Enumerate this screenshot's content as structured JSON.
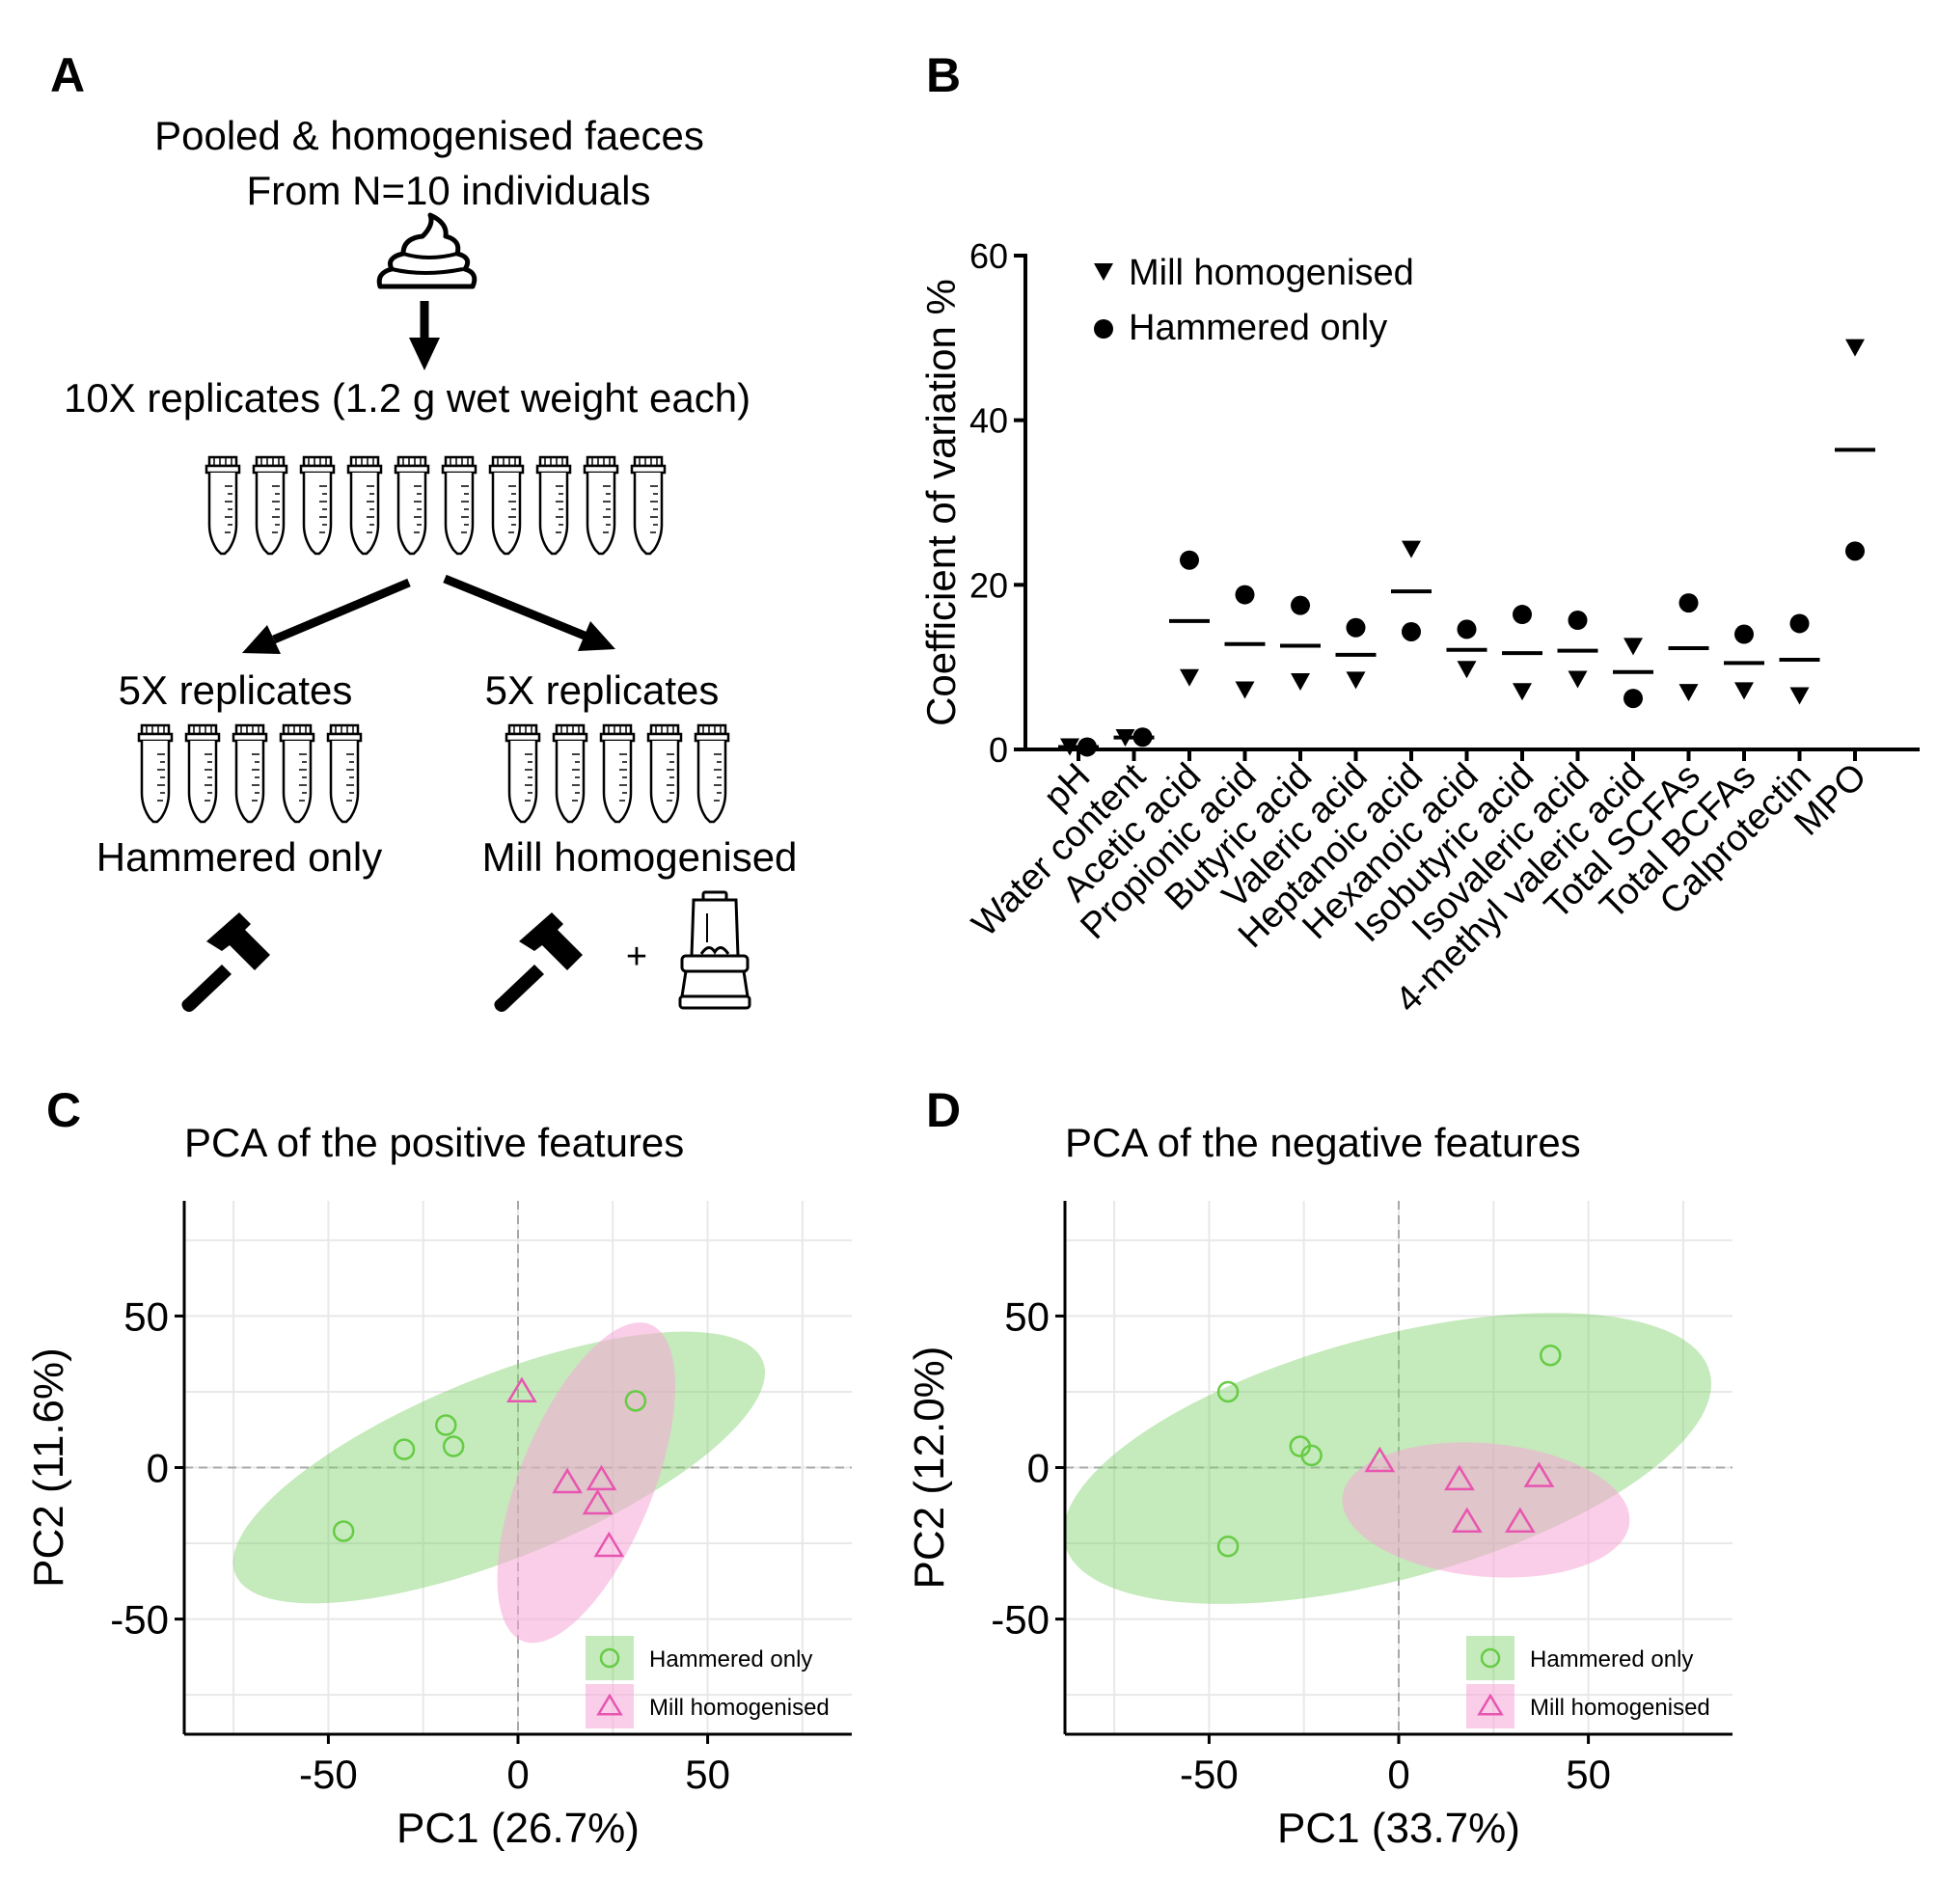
{
  "panels": {
    "A": {
      "letter": "A",
      "title_line1": "Pooled & homogenised faeces",
      "title_line2": "From N=10 individuals",
      "replicates_label": "10X replicates (1.2 g wet weight each)",
      "left_split_label": "5X replicates",
      "right_split_label": "5X replicates",
      "left_method": "Hammered only",
      "right_method": "Mill homogenised",
      "plus_sign": "+",
      "icons": [
        "faeces-icon",
        "arrow-down-icon",
        "tube-icon",
        "arrow-diagonal-icon",
        "hammer-icon",
        "mill-icon"
      ]
    },
    "B": {
      "letter": "B"
    },
    "C": {
      "letter": "C"
    },
    "D": {
      "letter": "D"
    }
  },
  "colors": {
    "hammered": "#66cc44",
    "hammered_fill": "#7fd16b",
    "mill": "#e855b0",
    "mill_fill": "#f6a6d6",
    "grid": "#e8e8e8",
    "axis": "#000000"
  },
  "chart_data": [
    {
      "id": "B",
      "type": "scatter",
      "title": "",
      "xlabel": "",
      "ylabel": "Coefficient of variation %",
      "ylim": [
        0,
        60
      ],
      "yticks": [
        0,
        20,
        40,
        60
      ],
      "categories": [
        "pH",
        "Water content",
        "Acetic acid",
        "Propionic acid",
        "Butyric acid",
        "Valeric acid",
        "Heptanoic acid",
        "Hexanoic acid",
        "Isobutyric acid",
        "Isovaleric acid",
        "4-methyl valeric acid",
        "Total SCFAs",
        "Total BCFAs",
        "Calprotectin",
        "MPO"
      ],
      "series": [
        {
          "name": "Mill homogenised",
          "marker": "triangle-down",
          "values": [
            0.3,
            1.4,
            8.7,
            7.2,
            8.2,
            8.4,
            24.3,
            9.7,
            7.0,
            8.5,
            12.5,
            6.9,
            7.1,
            6.5,
            48.8
          ]
        },
        {
          "name": "Hammered only",
          "marker": "circle",
          "values": [
            0.3,
            1.5,
            23.0,
            18.8,
            17.5,
            14.8,
            14.3,
            14.6,
            16.4,
            15.7,
            6.2,
            17.8,
            14.0,
            15.3,
            24.1
          ]
        }
      ],
      "means": [
        0.3,
        1.45,
        15.6,
        12.8,
        12.6,
        11.5,
        19.2,
        12.1,
        11.7,
        12.0,
        9.4,
        12.3,
        10.5,
        10.9,
        36.4
      ],
      "legend": [
        "Mill homogenised",
        "Hammered only"
      ],
      "legend_position": "top-left"
    },
    {
      "id": "C",
      "type": "scatter",
      "title": "PCA of the positive features",
      "xlabel": "PC1 (26.7%)",
      "ylabel": "PC2 (11.6%)",
      "xlim": [
        -88,
        88
      ],
      "ylim": [
        -88,
        88
      ],
      "xticks": [
        -50,
        0,
        50
      ],
      "yticks": [
        -50,
        0,
        50
      ],
      "series": [
        {
          "name": "Hammered only",
          "marker": "circle",
          "points": [
            [
              -46,
              -21
            ],
            [
              -30,
              6
            ],
            [
              -19,
              14
            ],
            [
              -17,
              7
            ],
            [
              31,
              22
            ]
          ]
        },
        {
          "name": "Mill homogenised",
          "marker": "triangle",
          "points": [
            [
              1,
              25
            ],
            [
              13,
              -5
            ],
            [
              22,
              -4
            ],
            [
              21,
              -12
            ],
            [
              24,
              -26
            ]
          ]
        }
      ],
      "ellipses": [
        {
          "group": "Hammered only",
          "center": [
            -5,
            0
          ],
          "semi_axes": [
            75,
            30
          ],
          "angle_deg": 22
        },
        {
          "group": "Mill homogenised",
          "center": [
            18,
            -5
          ],
          "semi_axes": [
            45,
            22
          ],
          "angle_deg": 68
        }
      ],
      "legend": [
        "Hammered only",
        "Mill homogenised"
      ],
      "legend_position": "bottom-right"
    },
    {
      "id": "D",
      "type": "scatter",
      "title": "PCA of the negative features",
      "xlabel": "PC1 (33.7%)",
      "ylabel": "PC2 (12.0%)",
      "xlim": [
        -88,
        88
      ],
      "ylim": [
        -88,
        88
      ],
      "xticks": [
        -50,
        0,
        50
      ],
      "yticks": [
        -50,
        0,
        50
      ],
      "series": [
        {
          "name": "Hammered only",
          "marker": "circle",
          "points": [
            [
              -45,
              25
            ],
            [
              -45,
              -26
            ],
            [
              -26,
              7
            ],
            [
              -23,
              4
            ],
            [
              40,
              37
            ]
          ]
        },
        {
          "name": "Mill homogenised",
          "marker": "triangle",
          "points": [
            [
              -5,
              2
            ],
            [
              16,
              -4
            ],
            [
              18,
              -18
            ],
            [
              32,
              -18
            ],
            [
              37,
              -3
            ]
          ]
        }
      ],
      "ellipses": [
        {
          "group": "Hammered only",
          "center": [
            -3,
            3
          ],
          "semi_axes": [
            88,
            40
          ],
          "angle_deg": 15
        },
        {
          "group": "Mill homogenised",
          "center": [
            23,
            -14
          ],
          "semi_axes": [
            38,
            22
          ],
          "angle_deg": -5
        }
      ],
      "legend": [
        "Hammered only",
        "Mill homogenised"
      ],
      "legend_position": "bottom-right"
    }
  ]
}
